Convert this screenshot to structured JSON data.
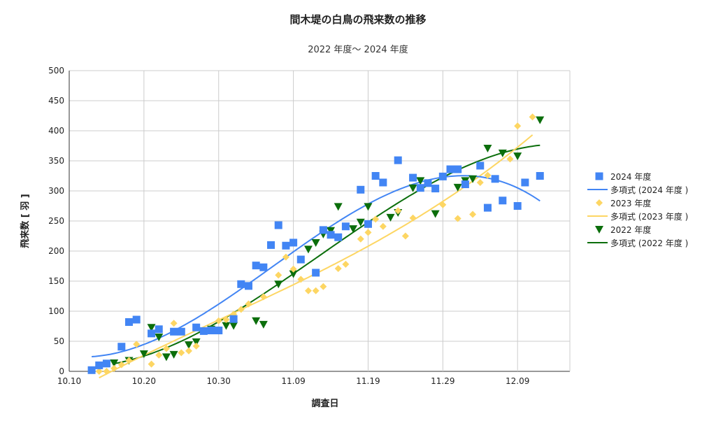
{
  "chart_data": {
    "type": "scatter",
    "title": "間木堤の白鳥の飛来数の推移",
    "subtitle": "2022 年度～ 2024 年度",
    "xlabel": "調査日",
    "ylabel": "飛来数 [ 羽 ]",
    "ylim": [
      0,
      500
    ],
    "yticks": [
      "0",
      "50",
      "100",
      "150",
      "200",
      "250",
      "300",
      "350",
      "400",
      "450",
      "500"
    ],
    "xlim": [
      "10.10",
      "12.16"
    ],
    "xticks": [
      "10.10",
      "10.20",
      "10.30",
      "11.09",
      "11.19",
      "11.29",
      "12.09"
    ],
    "grid": true,
    "legend_position": "right",
    "trendline": {
      "type": "polynomial",
      "degree": 3
    },
    "series": [
      {
        "name": "2024 年度",
        "trend_name": "多項式 (2024 年度 )",
        "color": "#4285f4",
        "marker": "square",
        "x": [
          "10.13",
          "10.14",
          "10.15",
          "10.17",
          "10.18",
          "10.19",
          "10.21",
          "10.22",
          "10.24",
          "10.25",
          "10.27",
          "10.28",
          "10.29",
          "10.30",
          "11.01",
          "11.02",
          "11.03",
          "11.04",
          "11.05",
          "11.06",
          "11.07",
          "11.08",
          "11.09",
          "11.10",
          "11.12",
          "11.13",
          "11.14",
          "11.15",
          "11.16",
          "11.18",
          "11.19",
          "11.20",
          "11.21",
          "11.23",
          "11.25",
          "11.26",
          "11.27",
          "11.28",
          "11.29",
          "11.30",
          "12.01",
          "12.02",
          "12.04",
          "12.05",
          "12.06",
          "12.07",
          "12.09",
          "12.10",
          "12.12"
        ],
        "y": [
          2,
          10,
          13,
          41,
          82,
          86,
          63,
          70,
          66,
          66,
          73,
          67,
          68,
          68,
          87,
          145,
          142,
          176,
          173,
          210,
          243,
          209,
          214,
          186,
          164,
          235,
          227,
          223,
          241,
          302,
          245,
          325,
          314,
          351,
          322,
          305,
          313,
          304,
          324,
          336,
          336,
          311,
          342,
          272,
          320,
          284,
          275,
          314,
          325
        ]
      },
      {
        "name": "2023 年度",
        "trend_name": "多項式 (2023 年度 )",
        "color": "#fdd663",
        "marker": "diamond",
        "x": [
          "10.14",
          "10.15",
          "10.16",
          "10.17",
          "10.18",
          "10.19",
          "10.21",
          "10.22",
          "10.23",
          "10.24",
          "10.25",
          "10.26",
          "10.27",
          "10.29",
          "10.30",
          "10.31",
          "11.01",
          "11.02",
          "11.03",
          "11.05",
          "11.07",
          "11.08",
          "11.09",
          "11.10",
          "11.11",
          "11.12",
          "11.13",
          "11.15",
          "11.16",
          "11.18",
          "11.19",
          "11.20",
          "11.21",
          "11.23",
          "11.24",
          "11.25",
          "11.29",
          "12.01",
          "12.03",
          "12.04",
          "12.05",
          "12.08",
          "12.09",
          "12.11"
        ],
        "y": [
          0,
          0,
          5,
          11,
          18,
          45,
          12,
          27,
          38,
          80,
          31,
          34,
          42,
          68,
          84,
          86,
          95,
          103,
          112,
          124,
          160,
          190,
          170,
          153,
          134,
          134,
          141,
          171,
          178,
          220,
          231,
          253,
          241,
          267,
          225,
          255,
          277,
          254,
          261,
          314,
          326,
          353,
          408,
          423
        ]
      },
      {
        "name": "2022 年度",
        "trend_name": "多項式 (2022 年度 )",
        "color": "#0b6e0b",
        "marker": "triangle-down",
        "x": [
          "10.16",
          "10.18",
          "10.20",
          "10.21",
          "10.22",
          "10.23",
          "10.24",
          "10.26",
          "10.27",
          "10.29",
          "10.31",
          "11.01",
          "11.04",
          "11.05",
          "11.07",
          "11.09",
          "11.11",
          "11.12",
          "11.13",
          "11.14",
          "11.15",
          "11.17",
          "11.18",
          "11.19",
          "11.22",
          "11.23",
          "11.25",
          "11.26",
          "11.28",
          "12.01",
          "12.02",
          "12.03",
          "12.05",
          "12.07",
          "12.09",
          "12.12"
        ],
        "y": [
          14,
          18,
          29,
          73,
          57,
          24,
          28,
          44,
          49,
          70,
          76,
          76,
          84,
          78,
          145,
          162,
          203,
          214,
          228,
          234,
          274,
          237,
          248,
          274,
          256,
          264,
          305,
          317,
          262,
          306,
          317,
          320,
          371,
          363,
          358,
          418
        ]
      }
    ]
  }
}
